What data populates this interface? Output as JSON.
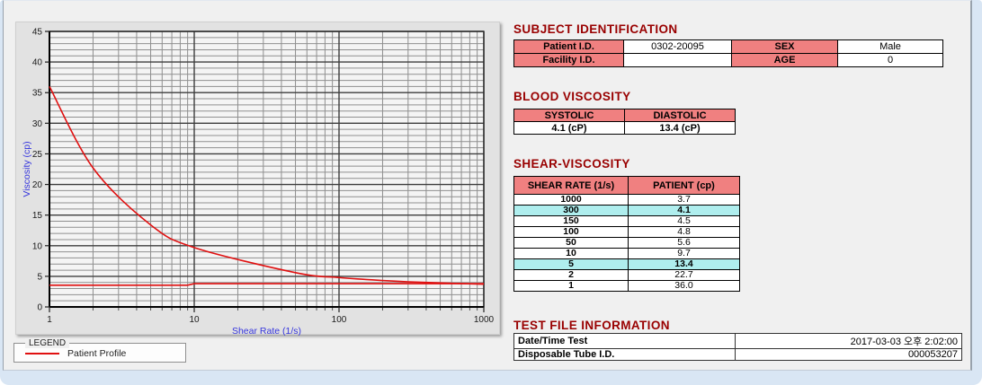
{
  "chart": {
    "legend_title": "LEGEND",
    "legend_entry": "Patient Profile"
  },
  "chart_data": {
    "type": "line",
    "title": "",
    "xlabel": "Shear Rate (1/s)",
    "ylabel": "Viscosity (cp)",
    "x_scale": "log",
    "xlim": [
      1,
      1000
    ],
    "ylim": [
      0,
      45
    ],
    "x_major_ticks": [
      1,
      10,
      100,
      1000
    ],
    "y_major_ticks": [
      0,
      5,
      10,
      15,
      20,
      25,
      30,
      35,
      40,
      45
    ],
    "y_minor_step": 1,
    "grid": true,
    "legend_position": "below-left",
    "series": [
      {
        "name": "Patient Profile",
        "x": [
          1,
          2,
          5,
          10,
          50,
          100,
          150,
          300,
          1000
        ],
        "y": [
          36.0,
          22.7,
          13.4,
          9.7,
          5.6,
          4.8,
          4.5,
          4.1,
          3.7
        ],
        "smooth": true
      },
      {
        "name": "Patient Profile baseline",
        "x": [
          1,
          9,
          10,
          1000
        ],
        "y": [
          3.55,
          3.55,
          3.8,
          3.8
        ],
        "smooth": false
      }
    ]
  },
  "subject": {
    "title": "SUBJECT IDENTIFICATION",
    "patient_id_label": "Patient I.D.",
    "patient_id": "0302-20095",
    "sex_label": "SEX",
    "sex": "Male",
    "facility_id_label": "Facility I.D.",
    "facility_id": "",
    "age_label": "AGE",
    "age": "0"
  },
  "blood": {
    "title": "BLOOD VISCOSITY",
    "systolic_label": "SYSTOLIC",
    "diastolic_label": "DIASTOLIC",
    "systolic": "4.1 (cP)",
    "diastolic": "13.4 (cP)"
  },
  "shear": {
    "title": "SHEAR-VISCOSITY",
    "col_rate": "SHEAR RATE (1/s)",
    "col_patient": "PATIENT (cp)",
    "rows": [
      {
        "rate": "1000",
        "value": "3.7",
        "highlight": false
      },
      {
        "rate": "300",
        "value": "4.1",
        "highlight": true
      },
      {
        "rate": "150",
        "value": "4.5",
        "highlight": false
      },
      {
        "rate": "100",
        "value": "4.8",
        "highlight": false
      },
      {
        "rate": "50",
        "value": "5.6",
        "highlight": false
      },
      {
        "rate": "10",
        "value": "9.7",
        "highlight": false
      },
      {
        "rate": "5",
        "value": "13.4",
        "highlight": true
      },
      {
        "rate": "2",
        "value": "22.7",
        "highlight": false
      },
      {
        "rate": "1",
        "value": "36.0",
        "highlight": false
      }
    ]
  },
  "test": {
    "title": "TEST FILE INFORMATION",
    "datetime_label": "Date/Time Test",
    "datetime": "2017-03-03  오후 2:02:00",
    "tube_label": "Disposable Tube I.D.",
    "tube_id": "000053207"
  },
  "colors": {
    "section_title": "#990000",
    "header_pink": "#f08080",
    "highlight_cyan": "#afeeee",
    "curve_red": "#e01010",
    "axis_label_blue": "#3535dd"
  }
}
